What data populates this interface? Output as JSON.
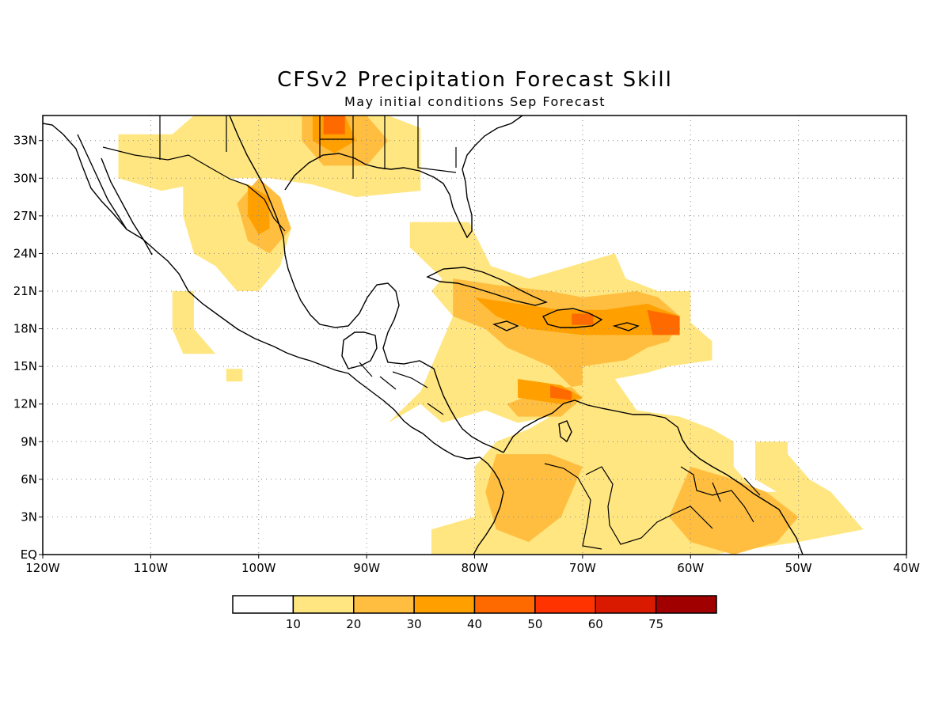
{
  "title": "CFSv2 Precipitation Forecast Skill",
  "subtitle": "May initial conditions  Sep Forecast",
  "map": {
    "lon_range": [
      -120,
      -40
    ],
    "lat_range": [
      0,
      35
    ],
    "lat_labels": [
      "EQ",
      "3N",
      "6N",
      "9N",
      "12N",
      "15N",
      "18N",
      "21N",
      "24N",
      "27N",
      "30N",
      "33N"
    ],
    "lat_values": [
      0,
      3,
      6,
      9,
      12,
      15,
      18,
      21,
      24,
      27,
      30,
      33
    ],
    "lon_labels": [
      "120W",
      "110W",
      "100W",
      "90W",
      "80W",
      "70W",
      "60W",
      "50W",
      "40W"
    ],
    "lon_values": [
      -120,
      -110,
      -100,
      -90,
      -80,
      -70,
      -60,
      -50,
      -40
    ],
    "grid": "dotted"
  },
  "colorbar": {
    "labels": [
      "10",
      "20",
      "30",
      "40",
      "50",
      "60",
      "75"
    ],
    "colors": [
      "#ffffff",
      "#ffe680",
      "#ffbe40",
      "#ffa000",
      "#ff6a00",
      "#ff3300",
      "#d91a00",
      "#a00000"
    ]
  },
  "skill_regions": [
    {
      "level": 1,
      "coords": [
        [
          -113,
          33.5
        ],
        [
          -108,
          33.5
        ],
        [
          -106,
          35
        ],
        [
          -93,
          35
        ],
        [
          -88,
          35
        ],
        [
          -85,
          34
        ],
        [
          -85,
          29
        ],
        [
          -91,
          28.5
        ],
        [
          -95,
          29.5
        ],
        [
          -99,
          30
        ],
        [
          -103,
          30
        ],
        [
          -106,
          29.5
        ],
        [
          -109,
          29
        ],
        [
          -113,
          30
        ]
      ]
    },
    {
      "level": 1,
      "coords": [
        [
          -107,
          30
        ],
        [
          -103,
          30
        ],
        [
          -99,
          29
        ],
        [
          -97,
          26
        ],
        [
          -98,
          23
        ],
        [
          -100,
          21
        ],
        [
          -102,
          21
        ],
        [
          -104,
          23
        ],
        [
          -106,
          24
        ],
        [
          -107,
          27
        ]
      ]
    },
    {
      "level": 1,
      "coords": [
        [
          -108,
          21
        ],
        [
          -106,
          21
        ],
        [
          -106,
          18
        ],
        [
          -104,
          16
        ],
        [
          -107,
          16
        ],
        [
          -108,
          18
        ]
      ]
    },
    {
      "level": 1,
      "coords": [
        [
          -103,
          14.8
        ],
        [
          -101.5,
          14.8
        ],
        [
          -101.5,
          13.8
        ],
        [
          -103,
          13.8
        ]
      ]
    },
    {
      "level": 1,
      "coords": [
        [
          -86,
          26.5
        ],
        [
          -80.5,
          26.5
        ],
        [
          -78.5,
          23
        ],
        [
          -75,
          22
        ],
        [
          -73,
          22.5
        ],
        [
          -67,
          24
        ],
        [
          -66,
          22
        ],
        [
          -63,
          21
        ],
        [
          -60,
          21
        ],
        [
          -60,
          18.5
        ],
        [
          -58,
          17
        ],
        [
          -58,
          15.5
        ],
        [
          -62,
          15
        ],
        [
          -64,
          14.5
        ],
        [
          -67,
          14
        ],
        [
          -65,
          11.5
        ],
        [
          -61,
          11
        ],
        [
          -58,
          10
        ],
        [
          -56,
          9
        ],
        [
          -56,
          7
        ],
        [
          -54,
          5
        ],
        [
          -52,
          5
        ],
        [
          -50,
          7
        ],
        [
          -48,
          5
        ],
        [
          -46,
          3
        ],
        [
          -44,
          2
        ],
        [
          -50,
          1
        ],
        [
          -58,
          0
        ],
        [
          -84,
          0
        ],
        [
          -84,
          2
        ],
        [
          -80,
          3
        ],
        [
          -80,
          7
        ],
        [
          -78,
          9
        ],
        [
          -75,
          10
        ],
        [
          -73,
          11
        ],
        [
          -76,
          10.5
        ],
        [
          -79,
          11.5
        ],
        [
          -83,
          10.5
        ],
        [
          -85,
          12
        ],
        [
          -88,
          10.5
        ],
        [
          -85,
          13
        ],
        [
          -83,
          17
        ],
        [
          -82,
          19
        ],
        [
          -84,
          21
        ],
        [
          -83,
          22
        ],
        [
          -86,
          24.5
        ]
      ]
    },
    {
      "level": 1,
      "coords": [
        [
          -54,
          9
        ],
        [
          -51,
          9
        ],
        [
          -51,
          8
        ],
        [
          -49,
          6
        ],
        [
          -47,
          5
        ],
        [
          -46,
          4
        ],
        [
          -44,
          2
        ],
        [
          -48,
          2
        ],
        [
          -50,
          3
        ],
        [
          -52,
          5
        ],
        [
          -54,
          6
        ]
      ]
    },
    {
      "level": 2,
      "coords": [
        [
          -100,
          30
        ],
        [
          -98,
          28.5
        ],
        [
          -97,
          26
        ],
        [
          -99,
          24
        ],
        [
          -101,
          25
        ],
        [
          -102,
          28
        ]
      ]
    },
    {
      "level": 2,
      "coords": [
        [
          -96,
          35
        ],
        [
          -90,
          35
        ],
        [
          -88,
          33
        ],
        [
          -90,
          31
        ],
        [
          -94,
          31
        ],
        [
          -96,
          33
        ]
      ]
    },
    {
      "level": 2,
      "coords": [
        [
          -82,
          22
        ],
        [
          -78,
          21.5
        ],
        [
          -73,
          21
        ],
        [
          -70,
          20.5
        ],
        [
          -65,
          21
        ],
        [
          -63,
          20.5
        ],
        [
          -61,
          19
        ],
        [
          -62,
          17
        ],
        [
          -64,
          16.5
        ],
        [
          -66,
          15.5
        ],
        [
          -70,
          15
        ],
        [
          -70,
          13.5
        ],
        [
          -74,
          13
        ],
        [
          -77,
          12
        ],
        [
          -76,
          11
        ],
        [
          -72,
          11
        ],
        [
          -70,
          12.5
        ],
        [
          -73,
          15
        ],
        [
          -77,
          16.5
        ],
        [
          -79,
          18
        ],
        [
          -82,
          19
        ]
      ]
    },
    {
      "level": 2,
      "coords": [
        [
          -78,
          8
        ],
        [
          -73,
          8
        ],
        [
          -70,
          7
        ],
        [
          -72,
          3
        ],
        [
          -75,
          1
        ],
        [
          -78,
          2
        ],
        [
          -79,
          5
        ]
      ]
    },
    {
      "level": 2,
      "coords": [
        [
          -60,
          7
        ],
        [
          -56,
          6
        ],
        [
          -53,
          5
        ],
        [
          -50,
          3
        ],
        [
          -52,
          1
        ],
        [
          -56,
          0
        ],
        [
          -60,
          1
        ],
        [
          -62,
          3
        ]
      ]
    },
    {
      "level": 3,
      "coords": [
        [
          -101,
          29.5
        ],
        [
          -99,
          28.5
        ],
        [
          -99,
          26
        ],
        [
          -100,
          25.5
        ],
        [
          -101,
          27
        ]
      ]
    },
    {
      "level": 3,
      "coords": [
        [
          -95,
          35
        ],
        [
          -92,
          35
        ],
        [
          -91,
          33
        ],
        [
          -93,
          32
        ],
        [
          -95,
          33
        ]
      ]
    },
    {
      "level": 3,
      "coords": [
        [
          -80,
          20.5
        ],
        [
          -76,
          20
        ],
        [
          -72,
          19.5
        ],
        [
          -68,
          19.5
        ],
        [
          -64,
          20
        ],
        [
          -61,
          19
        ],
        [
          -62,
          17.5
        ],
        [
          -66,
          17.5
        ],
        [
          -70,
          17.5
        ],
        [
          -75,
          18
        ],
        [
          -78,
          19
        ]
      ]
    },
    {
      "level": 3,
      "coords": [
        [
          -76,
          14
        ],
        [
          -72,
          13.5
        ],
        [
          -70,
          12.5
        ],
        [
          -72,
          12
        ],
        [
          -76,
          12.5
        ]
      ]
    },
    {
      "level": 4,
      "coords": [
        [
          -64,
          19.5
        ],
        [
          -61,
          19
        ],
        [
          -61,
          17.5
        ],
        [
          -63.5,
          17.5
        ]
      ]
    },
    {
      "level": 4,
      "coords": [
        [
          -73,
          13.5
        ],
        [
          -71,
          13
        ],
        [
          -71,
          12.3
        ],
        [
          -73,
          12.5
        ]
      ]
    },
    {
      "level": 4,
      "coords": [
        [
          -94,
          35
        ],
        [
          -92,
          35
        ],
        [
          -92,
          33.5
        ],
        [
          -94,
          33.5
        ]
      ]
    },
    {
      "level": 4,
      "coords": [
        [
          -71,
          19.2
        ],
        [
          -69,
          19.2
        ],
        [
          -69,
          18.3
        ],
        [
          -71,
          18.3
        ]
      ]
    }
  ]
}
